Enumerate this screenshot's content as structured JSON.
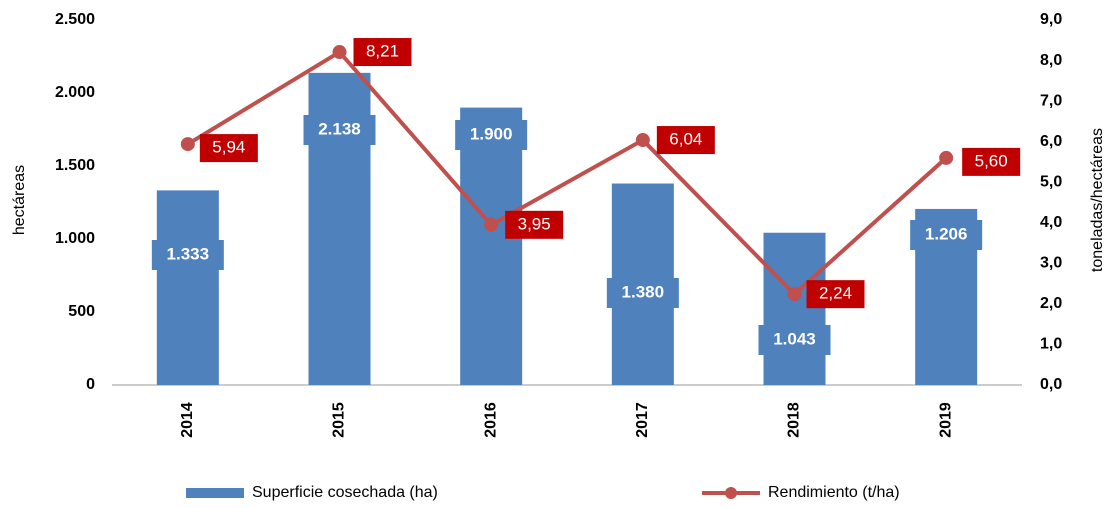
{
  "chart_data": {
    "type": "bar",
    "categories": [
      "2014",
      "2015",
      "2016",
      "2017",
      "2018",
      "2019"
    ],
    "series": [
      {
        "name": "Superficie cosechada (ha)",
        "type": "bar",
        "color": "#4f81bd",
        "values": [
          1333,
          2138,
          1900,
          1380,
          1043,
          1206
        ],
        "value_labels": [
          "1.333",
          "2.138",
          "1.900",
          "1.380",
          "1.043",
          "1.206"
        ]
      },
      {
        "name": "Rendimiento (t/ha)",
        "type": "line",
        "axis": "y2",
        "color": "#c0504d",
        "label_color": "#c00000",
        "values": [
          5.94,
          8.21,
          3.95,
          6.04,
          2.24,
          5.6
        ],
        "value_labels": [
          "5,94",
          "8,21",
          "3,95",
          "6,04",
          "2,24",
          "5,60"
        ]
      }
    ],
    "ylabel": "hectáreas",
    "y2label": "toneladas/hectáreas",
    "ylim": [
      0,
      2500
    ],
    "yticks": [
      {
        "value": 0,
        "label": "0"
      },
      {
        "value": 500,
        "label": "500"
      },
      {
        "value": 1000,
        "label": "1.000"
      },
      {
        "value": 1500,
        "label": "1.500"
      },
      {
        "value": 2000,
        "label": "2.000"
      },
      {
        "value": 2500,
        "label": "2.500"
      }
    ],
    "y2lim": [
      0,
      9
    ],
    "y2ticks": [
      {
        "value": 0,
        "label": "0,0"
      },
      {
        "value": 1,
        "label": "1,0"
      },
      {
        "value": 2,
        "label": "2,0"
      },
      {
        "value": 3,
        "label": "3,0"
      },
      {
        "value": 4,
        "label": "4,0"
      },
      {
        "value": 5,
        "label": "5,0"
      },
      {
        "value": 6,
        "label": "6,0"
      },
      {
        "value": 7,
        "label": "7,0"
      },
      {
        "value": 8,
        "label": "8,0"
      },
      {
        "value": 9,
        "label": "9,0"
      }
    ],
    "legend": "bottom"
  }
}
